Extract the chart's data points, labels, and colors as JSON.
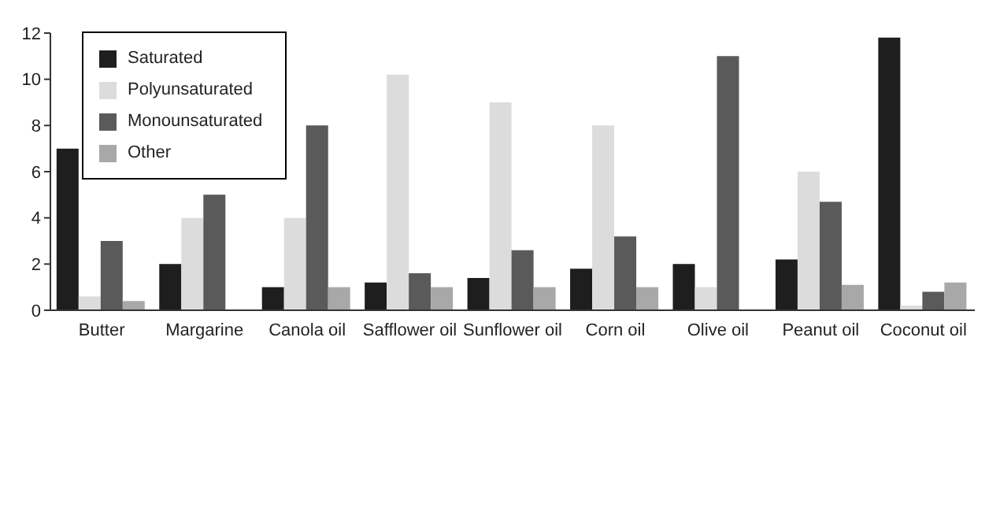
{
  "chart_data": {
    "type": "bar",
    "categories": [
      "Butter",
      "Margarine",
      "Canola oil",
      "Safflower oil",
      "Sunflower oil",
      "Corn oil",
      "Olive oil",
      "Peanut oil",
      "Coconut oil"
    ],
    "series": [
      {
        "name": "Saturated",
        "color": "#1e1e1e",
        "values": [
          7,
          2,
          1,
          1.2,
          1.4,
          1.8,
          2,
          2.2,
          11.8
        ]
      },
      {
        "name": "Polyunsaturated",
        "color": "#dcdcdc",
        "values": [
          0.6,
          4,
          4,
          10.2,
          9,
          8,
          1,
          6,
          0.2
        ]
      },
      {
        "name": "Monounsaturated",
        "color": "#5a5a5a",
        "values": [
          3,
          5,
          8,
          1.6,
          2.6,
          3.2,
          11,
          4.7,
          0.8
        ]
      },
      {
        "name": "Other",
        "color": "#a8a8a8",
        "values": [
          0.4,
          null,
          1,
          1,
          1,
          1,
          null,
          1.1,
          1.2
        ]
      }
    ],
    "ylim": [
      0,
      12
    ],
    "yticks": [
      0,
      2,
      4,
      6,
      8,
      10,
      12
    ],
    "grid": false,
    "legend": "top left"
  }
}
